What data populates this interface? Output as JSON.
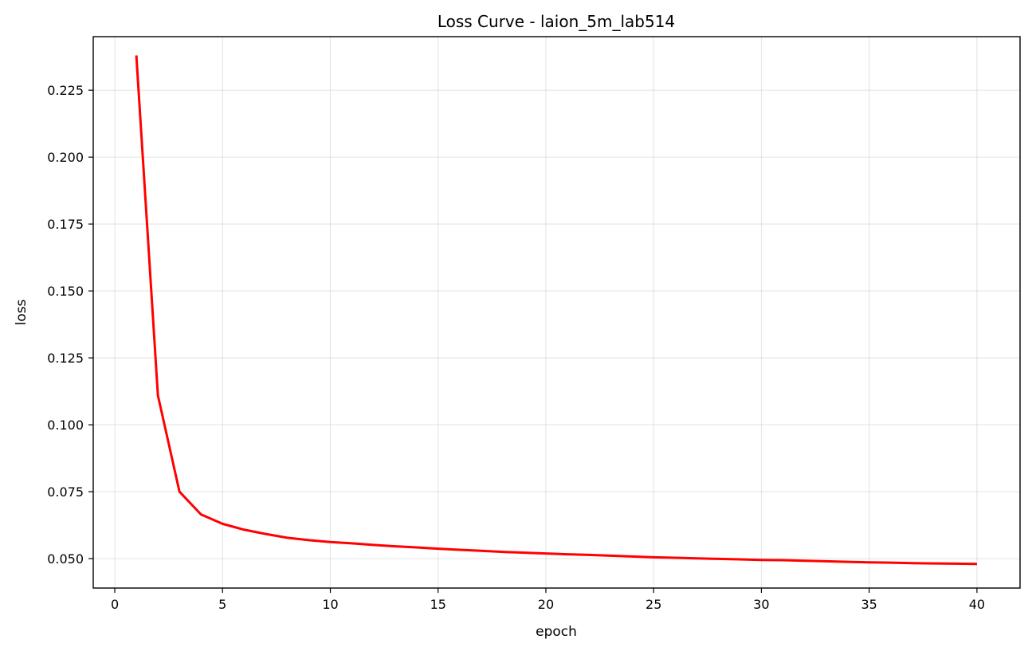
{
  "chart_data": {
    "type": "line",
    "title": "Loss Curve - laion_5m_lab514",
    "xlabel": "epoch",
    "ylabel": "loss",
    "xlim": [
      -1,
      42
    ],
    "ylim": [
      0.039,
      0.245
    ],
    "xticks": [
      0,
      5,
      10,
      15,
      20,
      25,
      30,
      35,
      40
    ],
    "yticks": [
      0.05,
      0.075,
      0.1,
      0.125,
      0.15,
      0.175,
      0.2,
      0.225
    ],
    "ytick_labels": [
      "0.050",
      "0.075",
      "0.100",
      "0.125",
      "0.150",
      "0.175",
      "0.200",
      "0.225"
    ],
    "grid": true,
    "series": [
      {
        "color": "#ff0000",
        "x": [
          1,
          2,
          3,
          4,
          5,
          6,
          7,
          8,
          9,
          10,
          11,
          12,
          13,
          14,
          15,
          16,
          17,
          18,
          19,
          20,
          21,
          22,
          23,
          24,
          25,
          26,
          27,
          28,
          29,
          30,
          31,
          32,
          33,
          34,
          35,
          36,
          37,
          38,
          39,
          40
        ],
        "y": [
          0.238,
          0.111,
          0.075,
          0.0665,
          0.063,
          0.0608,
          0.0592,
          0.0578,
          0.0569,
          0.0562,
          0.0557,
          0.0551,
          0.0546,
          0.0542,
          0.0537,
          0.0533,
          0.0529,
          0.0525,
          0.0522,
          0.0519,
          0.0516,
          0.0514,
          0.0511,
          0.0508,
          0.0505,
          0.0503,
          0.0501,
          0.0499,
          0.0497,
          0.0495,
          0.0494,
          0.0492,
          0.049,
          0.0488,
          0.0486,
          0.0485,
          0.0483,
          0.0482,
          0.0481,
          0.048
        ]
      }
    ]
  }
}
